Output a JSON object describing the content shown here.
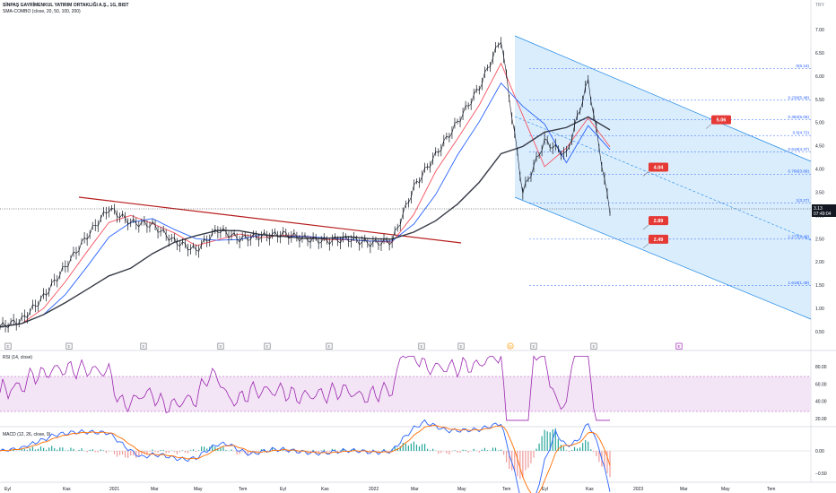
{
  "header": {
    "symbol_line": "SİNPAŞ GAYRİMENKUL YATIRIM ORTAKLIĞI A.Ş., 1G, BIST",
    "indicator": "SMA-COMBO (close, 20, 50, 100, 200)",
    "currency": "TRY"
  },
  "price_axis": {
    "ticks": [
      "7.00",
      "6.50",
      "6.00",
      "5.50",
      "5.00",
      "4.50",
      "4.00",
      "3.50",
      "3.00",
      "2.50",
      "2.00",
      "1.50",
      "1.00",
      "0.50"
    ],
    "ylim": [
      0.3,
      7.3
    ],
    "last_price": "3.13",
    "countdown": "07:49:04"
  },
  "time_axis": {
    "ticks": [
      "Eyl",
      "Kas",
      "2021",
      "Mar",
      "May",
      "Tem",
      "Eyl",
      "Kas",
      "2022",
      "Mar",
      "May",
      "Tem",
      "Eyl",
      "Kas",
      "2023",
      "Mar",
      "May",
      "Tem"
    ]
  },
  "event_markers": [
    "E",
    "E",
    "E",
    "E",
    "E",
    "E",
    "E",
    "E",
    "D",
    "E",
    "E",
    "E"
  ],
  "fib_levels": [
    {
      "label": "0(6.16)",
      "value": 6.16
    },
    {
      "label": "0.236(5.48)",
      "value": 5.48
    },
    {
      "label": "0.382(5.06)",
      "value": 5.06
    },
    {
      "label": "0.5(4.72)",
      "value": 4.72
    },
    {
      "label": "0.618(4.37)",
      "value": 4.37
    },
    {
      "label": "0.786(3.89)",
      "value": 3.89
    },
    {
      "label": "1(3.27)",
      "value": 3.27
    },
    {
      "label": "1.272(2.49)",
      "value": 2.49
    },
    {
      "label": "1.618(1.49)",
      "value": 1.49
    }
  ],
  "price_labels": [
    {
      "text": "5.06",
      "value": 5.06
    },
    {
      "text": "4.04",
      "value": 4.04
    },
    {
      "text": "2.89",
      "value": 2.89
    },
    {
      "text": "2.49",
      "value": 2.49
    }
  ],
  "rsi": {
    "title": "RSI (14, close)",
    "ticks": [
      "80.00",
      "60.00",
      "40.00",
      "20.00"
    ],
    "band": [
      30,
      70
    ]
  },
  "macd": {
    "title": "MACD (12, 26, close, 9)",
    "ticks": [
      "0.00",
      "−0.50"
    ]
  },
  "colors": {
    "price_up": "#26a69a",
    "price_down": "#ef5350",
    "candle": "#131722",
    "sma20": "#f7525f",
    "sma50": "#2962ff",
    "sma200": "#363a45",
    "channel_fill": "#bbdefb",
    "channel_line": "#1e88e5",
    "trendline": "#b71c1c",
    "fib": "#2962ff",
    "tag": "#e53935",
    "rsi": "#9c27b0",
    "rsi_band": "#f3e5f5"
  },
  "chart_data": {
    "type": "line",
    "x": [
      "2020-08",
      "2020-09",
      "2020-10",
      "2020-11",
      "2020-12",
      "2021-01",
      "2021-02",
      "2021-03",
      "2021-04",
      "2021-05",
      "2021-06",
      "2021-07",
      "2021-08",
      "2021-09",
      "2021-10",
      "2021-11",
      "2021-12",
      "2022-01",
      "2022-02",
      "2022-03",
      "2022-04",
      "2022-05",
      "2022-06",
      "2022-07",
      "2022-08",
      "2022-09",
      "2022-10",
      "2022-11",
      "2022-12"
    ],
    "series": [
      {
        "values": [
          0.6,
          0.75,
          1.25,
          1.9,
          2.55,
          3.15,
          2.85,
          2.8,
          2.45,
          2.25,
          2.7,
          2.5,
          2.55,
          2.6,
          2.5,
          2.45,
          2.5,
          2.4,
          2.45,
          3.6,
          4.3,
          5.0,
          5.75,
          6.8,
          3.5,
          4.6,
          4.3,
          5.9,
          3.05
        ]
      }
    ]
  }
}
